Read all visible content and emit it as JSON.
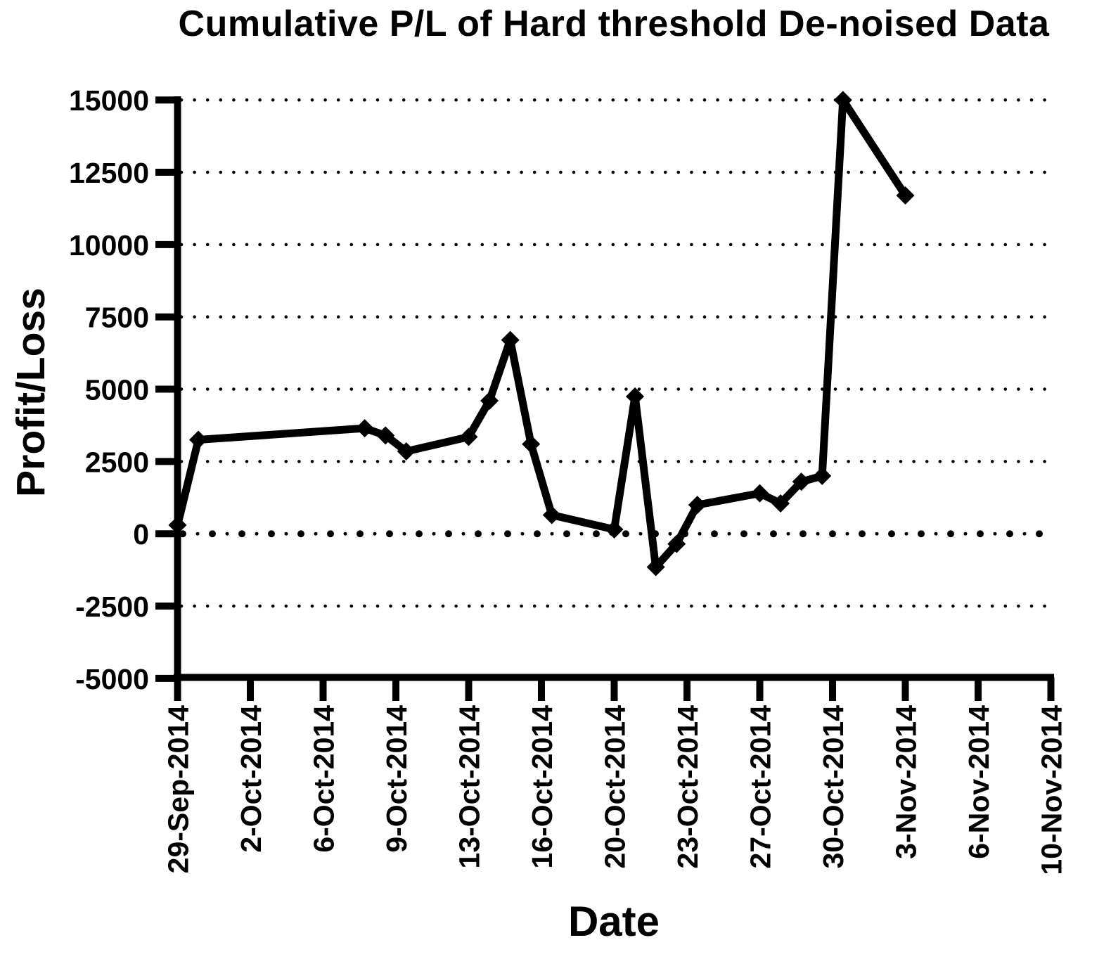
{
  "chart_data": {
    "type": "line",
    "title": "Cumulative P/L of Hard threshold De-noised Data",
    "xlabel": "Date",
    "ylabel": "Profit/Loss",
    "ylim": [
      -5000,
      15000
    ],
    "ytick_step": 2500,
    "yticks": [
      15000,
      12500,
      10000,
      7500,
      5000,
      2500,
      0,
      -2500,
      -5000
    ],
    "xticks": [
      "29-Sep-2014",
      "2-Oct-2014",
      "6-Oct-2014",
      "9-Oct-2014",
      "13-Oct-2014",
      "16-Oct-2014",
      "20-Oct-2014",
      "23-Oct-2014",
      "27-Oct-2014",
      "30-Oct-2014",
      "3-Nov-2014",
      "6-Nov-2014",
      "10-Nov-2014"
    ],
    "grid": "horizontal dotted lines at every y tick; zero line emphasized with larger alternating dots",
    "legend": "none",
    "marker": "diamond",
    "line_color": "#000000",
    "background_color": "#ffffff",
    "series": [
      {
        "points": [
          {
            "date": "29-Sep-2014",
            "day_offset": 0,
            "value": 300
          },
          {
            "date": "30-Sep-2014",
            "day_offset": 1,
            "value": 3250
          },
          {
            "date": "8-Oct-2014",
            "day_offset": 9,
            "value": 3650
          },
          {
            "date": "9-Oct-2014",
            "day_offset": 10,
            "value": 3400
          },
          {
            "date": "10-Oct-2014",
            "day_offset": 11,
            "value": 2850
          },
          {
            "date": "13-Oct-2014",
            "day_offset": 14,
            "value": 3350
          },
          {
            "date": "14-Oct-2014",
            "day_offset": 15,
            "value": 4600
          },
          {
            "date": "15-Oct-2014",
            "day_offset": 16,
            "value": 6700
          },
          {
            "date": "16-Oct-2014",
            "day_offset": 17,
            "value": 3100
          },
          {
            "date": "17-Oct-2014",
            "day_offset": 18,
            "value": 650
          },
          {
            "date": "20-Oct-2014",
            "day_offset": 21,
            "value": 150
          },
          {
            "date": "21-Oct-2014",
            "day_offset": 22,
            "value": 4750
          },
          {
            "date": "22-Oct-2014",
            "day_offset": 23,
            "value": -1150
          },
          {
            "date": "23-Oct-2014",
            "day_offset": 24,
            "value": -350
          },
          {
            "date": "24-Oct-2014",
            "day_offset": 25,
            "value": 1000
          },
          {
            "date": "27-Oct-2014",
            "day_offset": 28,
            "value": 1400
          },
          {
            "date": "28-Oct-2014",
            "day_offset": 29,
            "value": 1050
          },
          {
            "date": "29-Oct-2014",
            "day_offset": 30,
            "value": 1800
          },
          {
            "date": "30-Oct-2014",
            "day_offset": 31,
            "value": 2000
          },
          {
            "date": "31-Oct-2014",
            "day_offset": 32,
            "value": 15000
          },
          {
            "date": "3-Nov-2014",
            "day_offset": 35,
            "value": 11700
          }
        ]
      }
    ]
  }
}
